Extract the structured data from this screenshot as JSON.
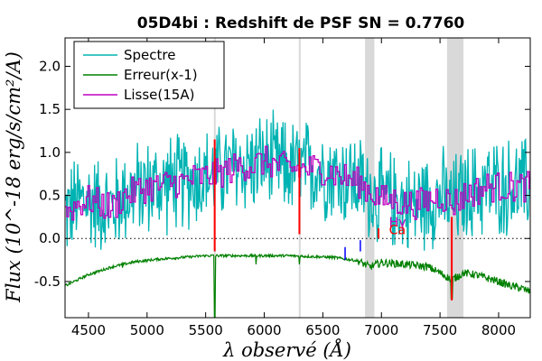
{
  "chart_data": {
    "type": "line",
    "title": "05D4bi : Redshift de PSF SN = 0.7760",
    "xlabel": "λ observé (Å)",
    "ylabel": "Flux (10^-18 erg/s/cm²/A)",
    "xlim": [
      4300,
      8270
    ],
    "ylim": [
      -0.92,
      2.33
    ],
    "xticks": [
      4500,
      5000,
      5500,
      6000,
      6500,
      7000,
      7500,
      8000
    ],
    "yticks": [
      -0.5,
      0.0,
      0.5,
      1.0,
      1.5,
      2.0
    ],
    "ytick_labels": [
      "-0.5",
      "0.0",
      "0.5",
      "1.0",
      "1.5",
      "2.0"
    ],
    "zero_line": true,
    "grid": false,
    "legend_position": "top-left",
    "legend": [
      {
        "label": "Spectre",
        "color": "#00b3b3"
      },
      {
        "label": "Erreur(x-1)",
        "color": "#008000"
      },
      {
        "label": "Lisse(15A)",
        "color": "#bf00bf"
      }
    ],
    "series": [
      {
        "name": "Spectre",
        "color": "#00b3b3",
        "x": [
          4300,
          4400,
          4500,
          4600,
          4700,
          4800,
          4900,
          5000,
          5100,
          5200,
          5300,
          5400,
          5500,
          5600,
          5700,
          5800,
          5900,
          6000,
          6100,
          6200,
          6300,
          6400,
          6500,
          6600,
          6700,
          6800,
          6900,
          7000,
          7100,
          7200,
          7300,
          7400,
          7500,
          7600,
          7700,
          7800,
          7900,
          8000,
          8100,
          8200,
          8270
        ],
        "y": [
          0.3,
          0.4,
          0.45,
          0.4,
          0.35,
          0.5,
          0.55,
          0.6,
          0.6,
          0.65,
          0.65,
          0.7,
          0.72,
          0.75,
          0.8,
          0.85,
          0.85,
          0.9,
          0.85,
          0.82,
          0.8,
          0.82,
          0.8,
          0.75,
          0.7,
          0.65,
          0.55,
          0.45,
          0.45,
          0.4,
          0.4,
          0.45,
          0.5,
          0.4,
          0.5,
          0.55,
          0.6,
          0.6,
          0.6,
          0.6,
          0.6
        ],
        "noise": 0.55
      },
      {
        "name": "Erreur(x-1)",
        "color": "#008000",
        "x": [
          4300,
          4500,
          4700,
          4900,
          5100,
          5300,
          5500,
          5600,
          5800,
          6000,
          6200,
          6400,
          6600,
          6800,
          6900,
          7000,
          7200,
          7400,
          7500,
          7600,
          7700,
          7800,
          8000,
          8100,
          8200,
          8270
        ],
        "y": [
          -0.55,
          -0.42,
          -0.33,
          -0.27,
          -0.24,
          -0.22,
          -0.2,
          -0.2,
          -0.2,
          -0.2,
          -0.2,
          -0.21,
          -0.22,
          -0.26,
          -0.33,
          -0.28,
          -0.3,
          -0.33,
          -0.4,
          -0.48,
          -0.4,
          -0.42,
          -0.5,
          -0.55,
          -0.58,
          -0.62
        ]
      },
      {
        "name": "Lisse(15A)",
        "color": "#bf00bf",
        "x": [
          4300,
          4400,
          4500,
          4600,
          4700,
          4800,
          4900,
          5000,
          5100,
          5200,
          5300,
          5400,
          5500,
          5600,
          5700,
          5800,
          5900,
          6000,
          6100,
          6200,
          6300,
          6400,
          6500,
          6600,
          6700,
          6800,
          6900,
          7000,
          7100,
          7200,
          7300,
          7400,
          7500,
          7600,
          7700,
          7800,
          7900,
          8000,
          8100,
          8200,
          8270
        ],
        "y": [
          0.3,
          0.4,
          0.45,
          0.4,
          0.35,
          0.5,
          0.55,
          0.6,
          0.6,
          0.65,
          0.65,
          0.7,
          0.72,
          0.75,
          0.8,
          0.85,
          0.85,
          0.9,
          0.85,
          0.82,
          0.8,
          0.82,
          0.8,
          0.75,
          0.7,
          0.65,
          0.55,
          0.45,
          0.45,
          0.4,
          0.4,
          0.45,
          0.5,
          0.4,
          0.5,
          0.55,
          0.6,
          0.6,
          0.6,
          0.6,
          0.6
        ],
        "noise": 0.18
      }
    ],
    "shaded_bands": [
      {
        "x0": 5570,
        "x1": 5585,
        "color": "#d9d9d9"
      },
      {
        "x0": 6295,
        "x1": 6310,
        "color": "#d9d9d9"
      },
      {
        "x0": 6860,
        "x1": 6940,
        "color": "#d9d9d9"
      },
      {
        "x0": 7560,
        "x1": 7700,
        "color": "#d9d9d9"
      }
    ],
    "red_markers": [
      {
        "x": 5577,
        "y0": -0.15,
        "y1": 1.15
      },
      {
        "x": 6300,
        "y0": 0.05,
        "y1": 1.05
      },
      {
        "x": 7600,
        "y0": -0.72,
        "y1": 0.25
      },
      {
        "x": 6975,
        "y0": 0.0,
        "y1": 0.12
      }
    ],
    "blue_markers": [
      {
        "x": 6690,
        "y0": -0.25,
        "y1": -0.1
      },
      {
        "x": 6820,
        "y0": -0.15,
        "y1": -0.02
      }
    ],
    "line_labels": [
      {
        "text": "Hγ",
        "x": 7065,
        "y": 0.14,
        "color": "#bf00bf"
      },
      {
        "text": "Ca",
        "x": 7065,
        "y": 0.05,
        "color": "#ff0000"
      }
    ]
  }
}
